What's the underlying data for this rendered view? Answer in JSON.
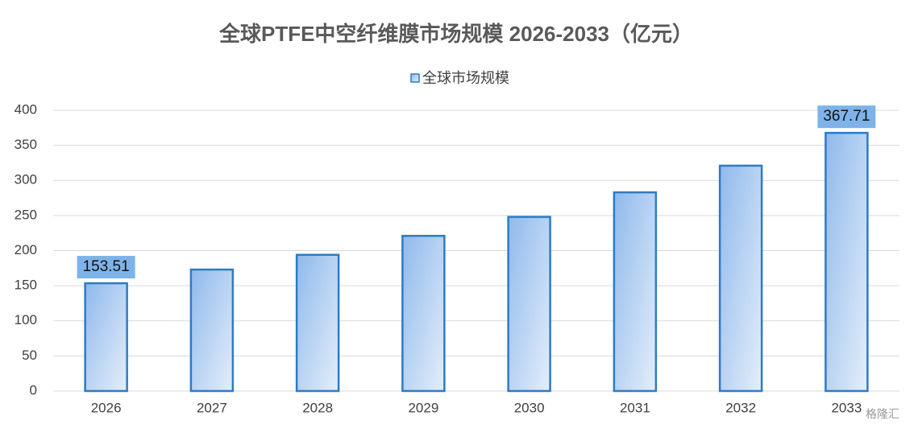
{
  "chart_data": {
    "type": "bar",
    "title": "全球PTFE中空纤维膜市场规模 2026-2033（亿元）",
    "categories": [
      "2026",
      "2027",
      "2028",
      "2029",
      "2030",
      "2031",
      "2032",
      "2033"
    ],
    "series": [
      {
        "name": "全球市场规模",
        "color": "#2e7bc4",
        "values": [
          153.51,
          173,
          194,
          221,
          248,
          283,
          321,
          367.71
        ],
        "value_labels": [
          "153.51",
          null,
          null,
          null,
          null,
          null,
          null,
          "367.71"
        ]
      }
    ],
    "ylim": [
      0,
      400
    ],
    "yticks": [
      0,
      50,
      100,
      150,
      200,
      250,
      300,
      350,
      400
    ],
    "grid": true,
    "legend": "top",
    "watermark": "格隆汇"
  }
}
